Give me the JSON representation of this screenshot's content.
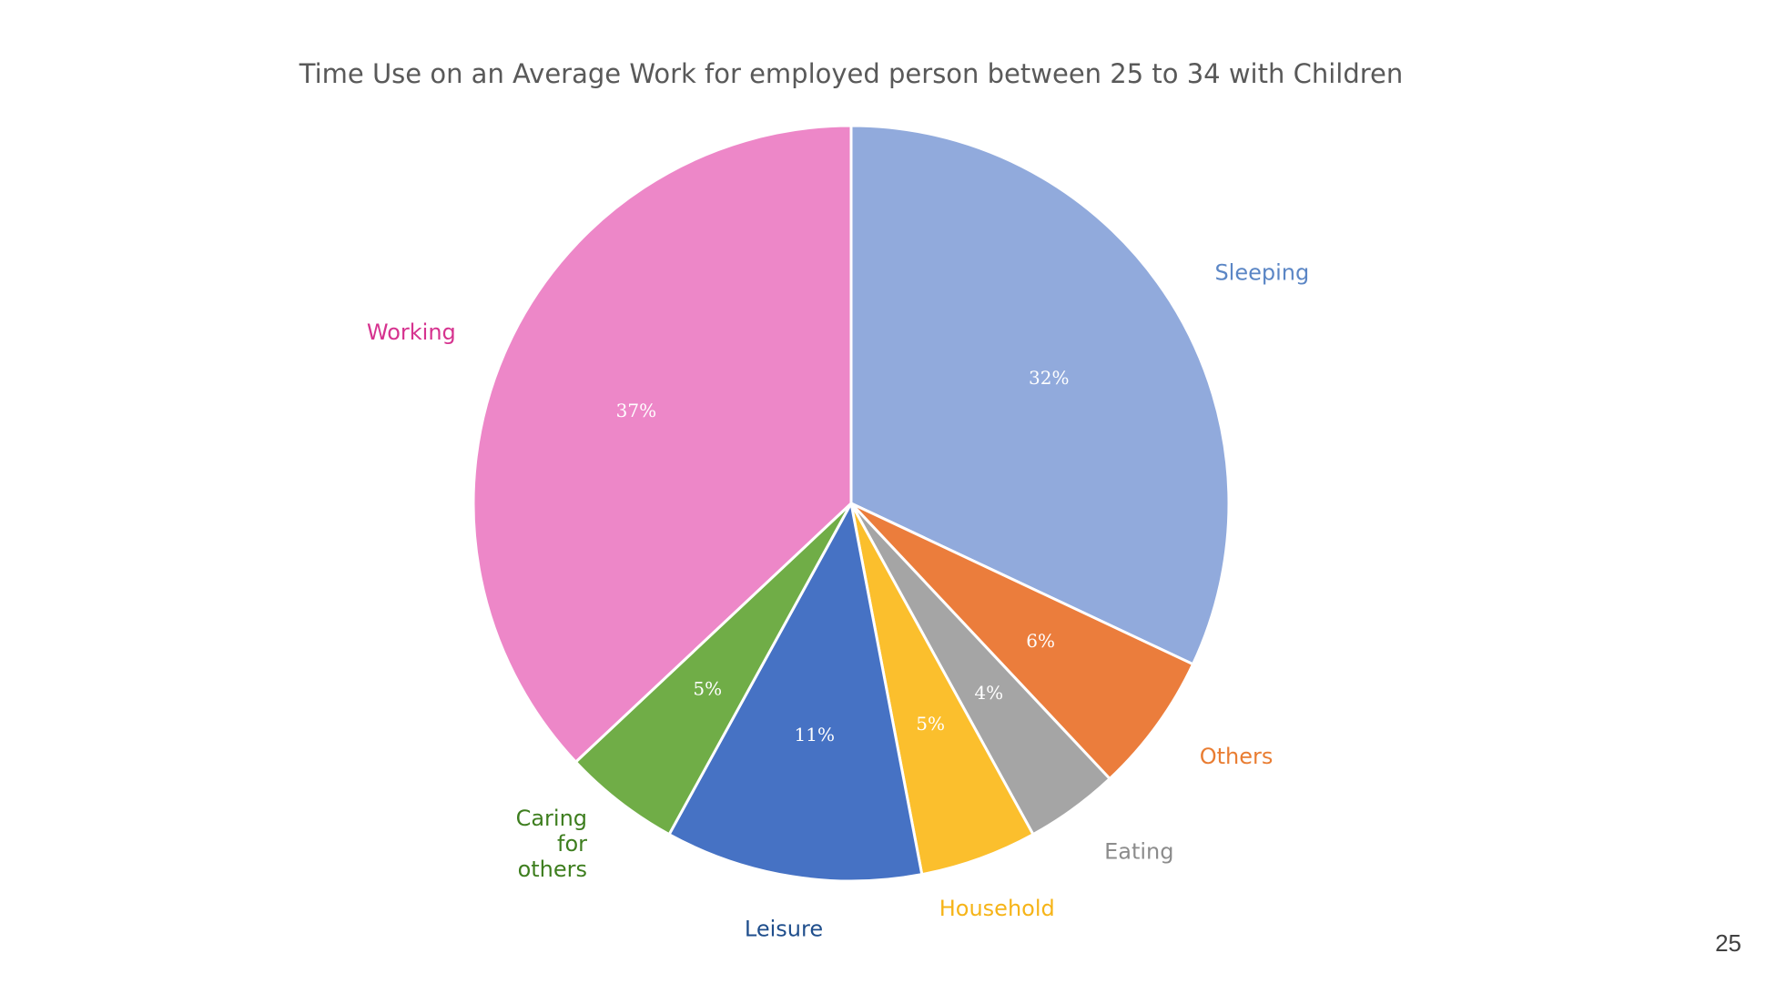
{
  "page_number": "25",
  "chart_data": {
    "type": "pie",
    "title": "Time Use on an Average Work for employed person between 25 to 34 with Children",
    "start_angle_deg": 0,
    "direction": "clockwise",
    "slices": [
      {
        "label": "Sleeping",
        "value": 32,
        "value_label": "32%",
        "color": "#91AADC",
        "label_color": "#5B86C5"
      },
      {
        "label": "Others",
        "value": 6,
        "value_label": "6%",
        "color": "#EB7D3C",
        "label_color": "#E97D32"
      },
      {
        "label": "Eating",
        "value": 4,
        "value_label": "4%",
        "color": "#A5A5A5",
        "label_color": "#8C8C8C"
      },
      {
        "label": "Household",
        "value": 5,
        "value_label": "5%",
        "color": "#FBBF2D",
        "label_color": "#F6B418"
      },
      {
        "label": "Leisure",
        "value": 11,
        "value_label": "11%",
        "color": "#4672C4",
        "label_color": "#1F4E8C"
      },
      {
        "label": "Caring for others",
        "value": 5,
        "value_label": "5%",
        "color": "#70AD47",
        "label_color": "#3E7E1F"
      },
      {
        "label": "Working",
        "value": 37,
        "value_label": "37%",
        "color": "#ED87C8",
        "label_color": "#D6338F"
      }
    ]
  }
}
